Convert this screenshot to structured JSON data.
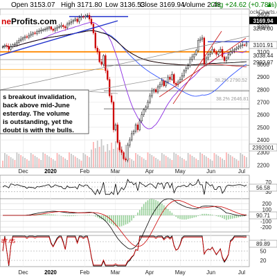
{
  "header": {
    "open": "Open 3153.07",
    "high": "High 3171.80",
    "low": "Low 3136.53",
    "close": "Close 3169.94",
    "volume": "Volume 2.48",
    "chg": "Chg +24.62 (+0.78%)",
    "arrow": "▲",
    "credit": "@ StockCharts.com"
  },
  "brand": {
    "left": "ne",
    "right": "Profits.com"
  },
  "annotation": [
    "s breakout invalidation,",
    "back above mid-June",
    "esterday. The volume",
    "is outstanding, yet the",
    "doubt is with the bulls."
  ],
  "fib_labels": [
    "38.2% 2790.52",
    "38.2% 2646.81"
  ],
  "price_labels": [
    {
      "text": "3169.94",
      "bg": "#000000",
      "fg": "#ffffff"
    },
    {
      "text": "3204.00",
      "bg": "#ffffff",
      "fg": "#555555"
    },
    {
      "text": "3101.91",
      "bg": "#ffffff",
      "fg": "#000000"
    },
    {
      "text": "3038.44",
      "bg": "#ffffff",
      "fg": "#555555"
    },
    {
      "text": "2992.97",
      "bg": "#ffffff",
      "fg": "#555555"
    },
    {
      "text": "2392001",
      "bg": "#ffffff",
      "fg": "#000000"
    }
  ],
  "indicator_labels": [
    "56.58",
    "90.71",
    "89.89",
    "87.65"
  ],
  "chart_data": {
    "type": "candlestick",
    "x_labels_top": [
      "Dec",
      "2020",
      "Feb",
      "Mar",
      "Apr",
      "May",
      "Jun",
      "Jul"
    ],
    "x_labels_bottom": [
      "Dec",
      "2020",
      "Feb",
      "Mar",
      "Apr",
      "May",
      "Jun",
      "Jul"
    ],
    "price_axis": {
      "ticks": [
        2200,
        2300,
        2400,
        2500,
        2600,
        2700,
        2800,
        2900,
        3000,
        3100,
        3300,
        3400
      ],
      "range": [
        2180,
        3440
      ]
    },
    "rsi_axis": {
      "ticks": [
        70,
        50,
        30
      ]
    },
    "macd_axis": {
      "ticks": [
        200,
        100,
        0,
        -100,
        -200
      ]
    },
    "stoch_axis": {
      "ticks": [
        80,
        50,
        20
      ]
    },
    "close": [
      3140,
      3150,
      3145,
      3120,
      3140,
      3155,
      3160,
      3175,
      3190,
      3200,
      3210,
      3220,
      3215,
      3230,
      3240,
      3250,
      3245,
      3260,
      3265,
      3270,
      3275,
      3280,
      3290,
      3300,
      3280,
      3270,
      3285,
      3295,
      3300,
      3310,
      3300,
      3290,
      3320,
      3330,
      3340,
      3350,
      3360,
      3340,
      3370,
      3380,
      3375,
      3385,
      3390,
      3360,
      3320,
      3250,
      3130,
      3100,
      3020,
      3000,
      3070,
      2950,
      2880,
      2750,
      2700,
      2480,
      2520,
      2380,
      2320,
      2300,
      2250,
      2240,
      2360,
      2400,
      2450,
      2470,
      2520,
      2480,
      2550,
      2600,
      2640,
      2660,
      2700,
      2750,
      2790,
      2800,
      2780,
      2820,
      2840,
      2870,
      2830,
      2860,
      2900,
      2880,
      2920,
      2850,
      2840,
      2860,
      2880,
      2910,
      2950,
      2970,
      2990,
      3040,
      3060,
      3080,
      3110,
      3190,
      3200,
      3210,
      3000,
      3050,
      3080,
      3090,
      3120,
      3100,
      3080,
      3100,
      3120,
      3060,
      3030,
      3050,
      3080,
      3100,
      3110,
      3120,
      3130,
      3140,
      3150,
      3155,
      3153,
      3169.94
    ]
  }
}
